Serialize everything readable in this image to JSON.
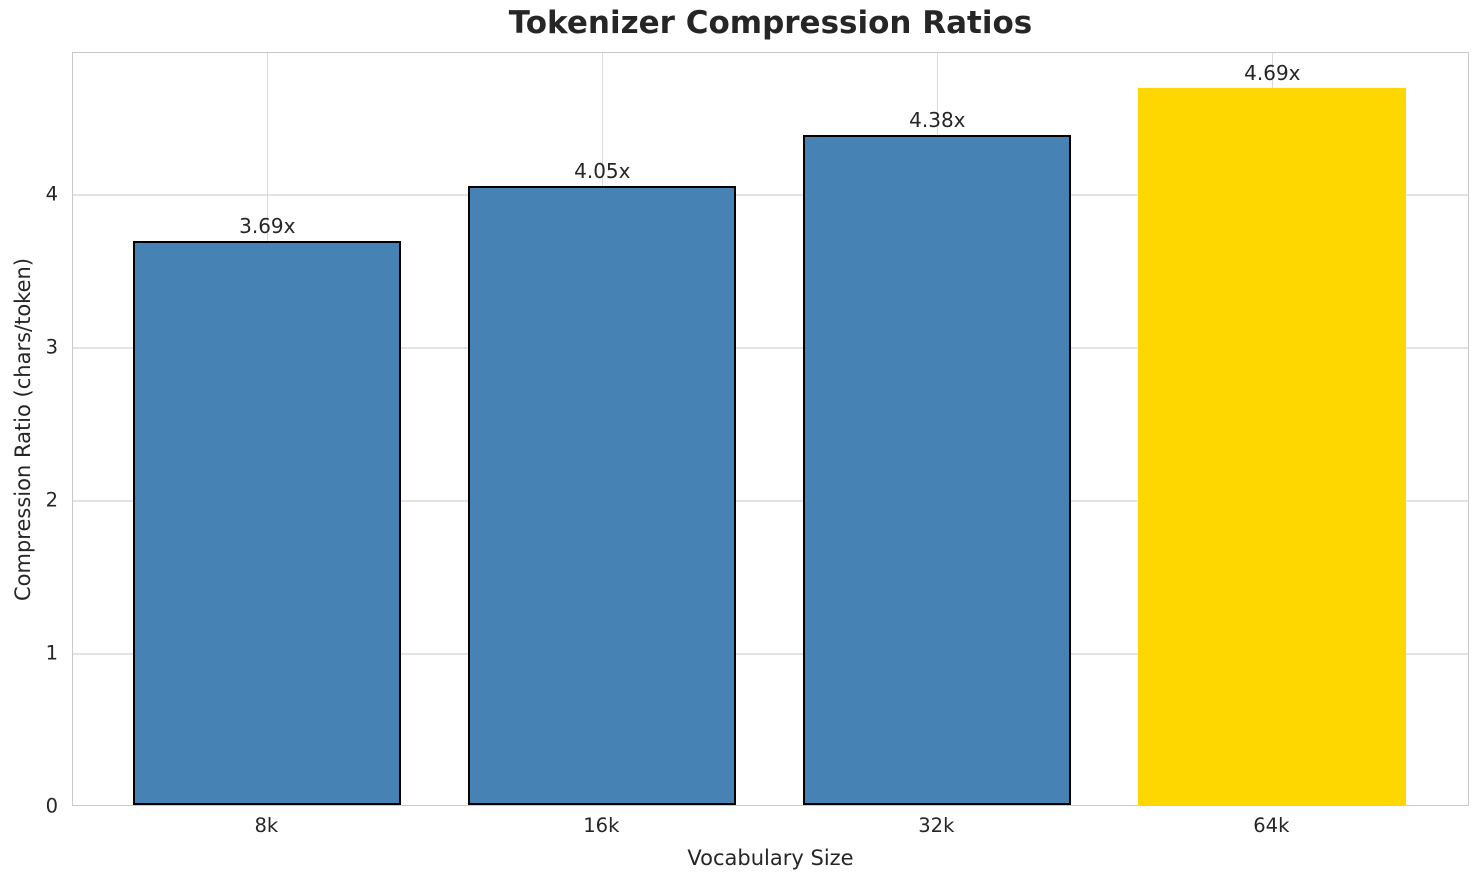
{
  "chart_data": {
    "type": "bar",
    "title": "Tokenizer Compression Ratios",
    "xlabel": "Vocabulary Size",
    "ylabel": "Compression Ratio (chars/token)",
    "categories": [
      "8k",
      "16k",
      "32k",
      "64k"
    ],
    "values": [
      3.69,
      4.05,
      4.38,
      4.69
    ],
    "value_labels": [
      "3.69x",
      "4.05x",
      "4.38x",
      "4.69x"
    ],
    "bar_colors": [
      "#4682B4",
      "#4682B4",
      "#4682B4",
      "#FFD700"
    ],
    "bar_edge_colors": [
      "#000000",
      "#000000",
      "#000000",
      "none"
    ],
    "yticks": [
      0,
      1,
      2,
      3,
      4
    ],
    "ylim": [
      0,
      4.93
    ],
    "xlim": [
      -0.58,
      3.59
    ],
    "bar_width": 0.8,
    "grid": true,
    "legend_position": "none",
    "colors": {
      "grid": "#e0e0e0",
      "spine": "#c9c9c9",
      "text": "#262626",
      "background": "#ffffff",
      "bar_default": "#4682B4",
      "bar_highlight": "#FFD700",
      "bar_edge": "#000000"
    }
  }
}
